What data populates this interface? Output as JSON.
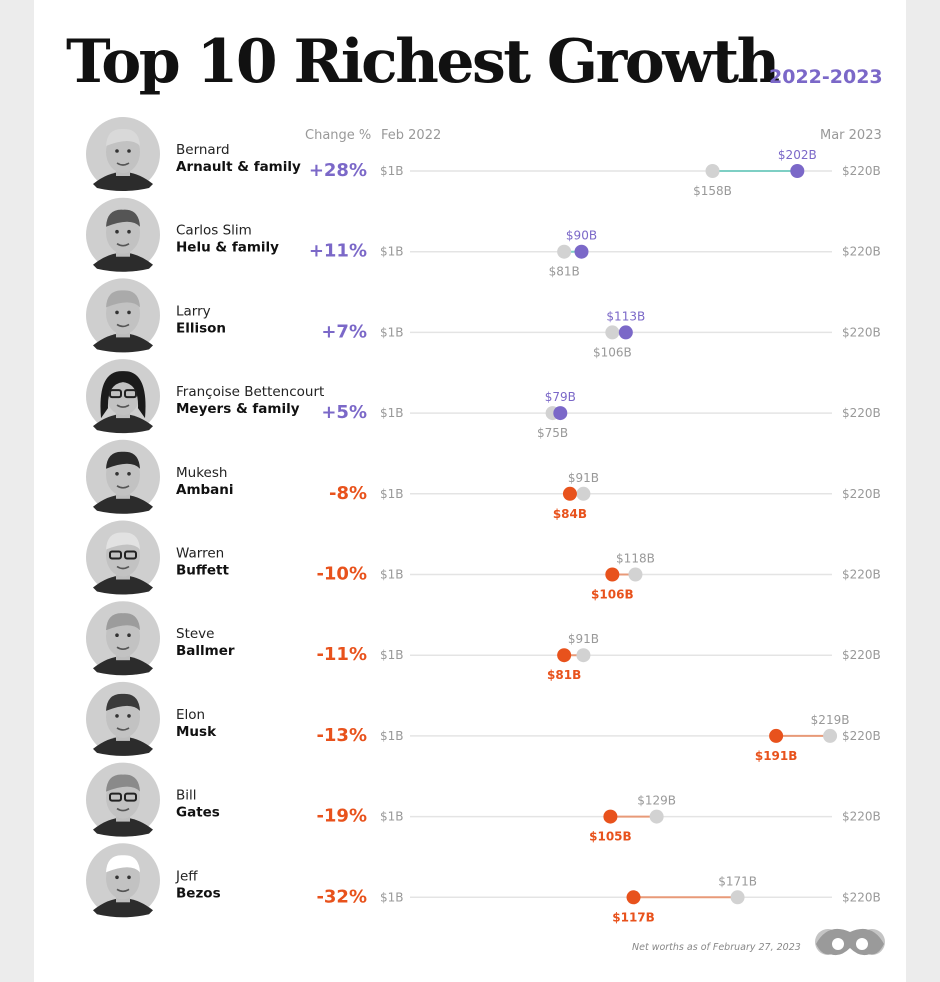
{
  "header": {
    "title": "Top 10 Richest Growth",
    "years": "2022-2023"
  },
  "columns": {
    "change": "Change %",
    "start": "Feb 2022",
    "end": "Mar 2023"
  },
  "footnote": "Net worths as of February 27, 2023",
  "colors": {
    "gain": "#7b68c8",
    "loss": "#e8521c",
    "gain_line": "#7ecfc4",
    "loss_line": "#e89a78",
    "start_dot": "#d2d2d2",
    "track": "#e4e4e4"
  },
  "chart_data": {
    "type": "dumbbell",
    "axis": {
      "min_label": "$1B",
      "max_label": "$220B",
      "min": 1,
      "max": 220
    },
    "rows": [
      {
        "first": "Bernard",
        "last": "Arnault & family",
        "change": "+28%",
        "start": 158,
        "end": 202,
        "start_label": "$158B",
        "end_label": "$202B",
        "avatar": "arnault"
      },
      {
        "first": "Carlos Slim",
        "last": "Helu & family",
        "change": "+11%",
        "start": 81,
        "end": 90,
        "start_label": "$81B",
        "end_label": "$90B",
        "avatar": "slim"
      },
      {
        "first": "Larry",
        "last": "Ellison",
        "change": "+7%",
        "start": 106,
        "end": 113,
        "start_label": "$106B",
        "end_label": "$113B",
        "avatar": "ellison"
      },
      {
        "first": "Françoise Bettencourt",
        "last": "Meyers & family",
        "change": "+5%",
        "start": 75,
        "end": 79,
        "start_label": "$75B",
        "end_label": "$79B",
        "avatar": "bettencourt"
      },
      {
        "first": "Mukesh",
        "last": "Ambani",
        "change": "-8%",
        "start": 91,
        "end": 84,
        "start_label": "$91B",
        "end_label": "$84B",
        "avatar": "ambani"
      },
      {
        "first": "Warren",
        "last": "Buffett",
        "change": "-10%",
        "start": 118,
        "end": 106,
        "start_label": "$118B",
        "end_label": "$106B",
        "avatar": "buffett"
      },
      {
        "first": "Steve",
        "last": "Ballmer",
        "change": "-11%",
        "start": 91,
        "end": 81,
        "start_label": "$91B",
        "end_label": "$81B",
        "avatar": "ballmer"
      },
      {
        "first": "Elon",
        "last": "Musk",
        "change": "-13%",
        "start": 219,
        "end": 191,
        "start_label": "$219B",
        "end_label": "$191B",
        "avatar": "musk"
      },
      {
        "first": "Bill",
        "last": "Gates",
        "change": "-19%",
        "start": 129,
        "end": 105,
        "start_label": "$129B",
        "end_label": "$105B",
        "avatar": "gates"
      },
      {
        "first": "Jeff",
        "last": "Bezos",
        "change": "-32%",
        "start": 171,
        "end": 117,
        "start_label": "$171B",
        "end_label": "$117B",
        "avatar": "bezos"
      }
    ]
  }
}
